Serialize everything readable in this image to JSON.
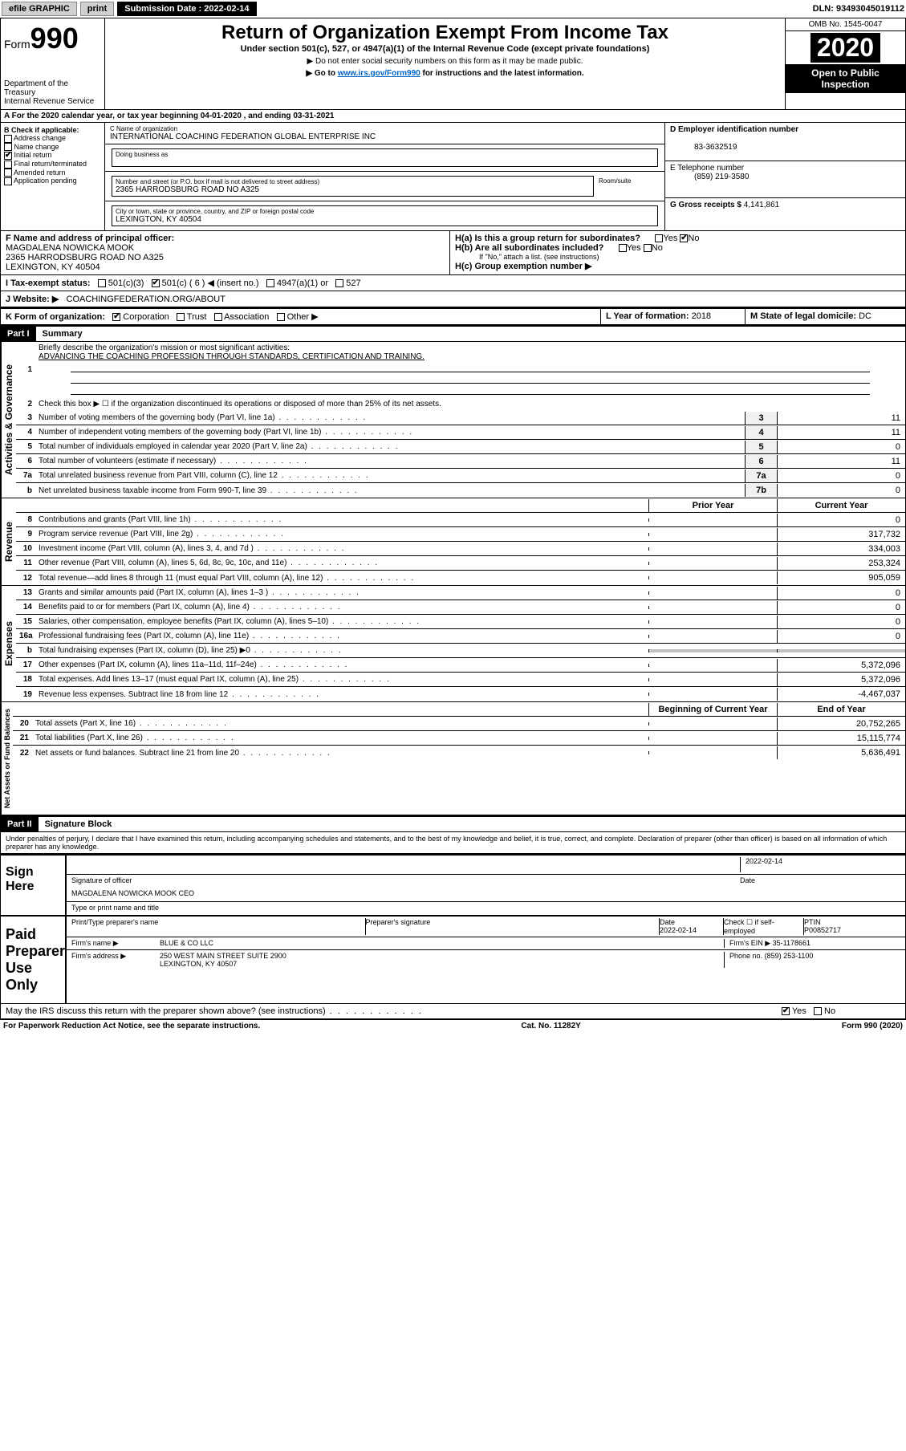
{
  "topbar": {
    "efile": "efile GRAPHIC",
    "print": "print",
    "sub_label": "Submission Date : 2022-02-14",
    "dln": "DLN: 93493045019112"
  },
  "header": {
    "form_label": "Form",
    "form_num": "990",
    "dept": "Department of the Treasury",
    "irs": "Internal Revenue Service",
    "title": "Return of Organization Exempt From Income Tax",
    "subtitle": "Under section 501(c), 527, or 4947(a)(1) of the Internal Revenue Code (except private foundations)",
    "note1": "▶ Do not enter social security numbers on this form as it may be made public.",
    "note2_pre": "▶ Go to ",
    "note2_link": "www.irs.gov/Form990",
    "note2_post": " for instructions and the latest information.",
    "omb": "OMB No. 1545-0047",
    "year": "2020",
    "open": "Open to Public Inspection"
  },
  "row_a": "A For the 2020 calendar year, or tax year beginning 04-01-2020    , and ending 03-31-2021",
  "box_b": {
    "label": "B Check if applicable:",
    "opts": [
      "Address change",
      "Name change",
      "Initial return",
      "Final return/terminated",
      "Amended return",
      "Application pending"
    ],
    "checked_idx": 2
  },
  "box_c": {
    "name_label": "C Name of organization",
    "name": "INTERNATIONAL COACHING FEDERATION GLOBAL ENTERPRISE INC",
    "dba_label": "Doing business as",
    "addr_label": "Number and street (or P.O. box if mail is not delivered to street address)",
    "room_label": "Room/suite",
    "addr": "2365 HARRODSBURG ROAD NO A325",
    "city_label": "City or town, state or province, country, and ZIP or foreign postal code",
    "city": "LEXINGTON, KY  40504"
  },
  "box_d": {
    "label": "D Employer identification number",
    "val": "83-3632519"
  },
  "box_e": {
    "label": "E Telephone number",
    "val": "(859) 219-3580"
  },
  "box_g": {
    "label": "G Gross receipts $",
    "val": "4,141,861"
  },
  "box_f": {
    "label": "F  Name and address of principal officer:",
    "name": "MAGDALENA NOWICKA MOOK",
    "addr": "2365 HARRODSBURG ROAD NO A325",
    "city": "LEXINGTON, KY  40504"
  },
  "box_h": {
    "a": "H(a)  Is this a group return for subordinates?",
    "b": "H(b)  Are all subordinates included?",
    "b_note": "If \"No,\" attach a list. (see instructions)",
    "c": "H(c)  Group exemption number ▶",
    "yes": "Yes",
    "no": "No"
  },
  "box_i": {
    "label": "I  Tax-exempt status:",
    "o1": "501(c)(3)",
    "o2": "501(c) ( 6 ) ◀ (insert no.)",
    "o3": "4947(a)(1) or",
    "o4": "527"
  },
  "box_j": {
    "label": "J  Website: ▶",
    "val": "COACHINGFEDERATION.ORG/ABOUT"
  },
  "box_k": {
    "label": "K Form of organization:",
    "o1": "Corporation",
    "o2": "Trust",
    "o3": "Association",
    "o4": "Other ▶"
  },
  "box_l": {
    "label": "L Year of formation:",
    "val": "2018"
  },
  "box_m": {
    "label": "M State of legal domicile:",
    "val": "DC"
  },
  "part1": {
    "tag": "Part I",
    "title": "Summary"
  },
  "summary": {
    "l1_label": "Briefly describe the organization's mission or most significant activities:",
    "l1_val": "ADVANCING THE COACHING PROFESSION THROUGH STANDARDS, CERTIFICATION AND TRAINING.",
    "l2": "Check this box ▶ ☐  if the organization discontinued its operations or disposed of more than 25% of its net assets.",
    "rows_gov": [
      {
        "n": "3",
        "t": "Number of voting members of the governing body (Part VI, line 1a)",
        "b": "3",
        "v": "11"
      },
      {
        "n": "4",
        "t": "Number of independent voting members of the governing body (Part VI, line 1b)",
        "b": "4",
        "v": "11"
      },
      {
        "n": "5",
        "t": "Total number of individuals employed in calendar year 2020 (Part V, line 2a)",
        "b": "5",
        "v": "0"
      },
      {
        "n": "6",
        "t": "Total number of volunteers (estimate if necessary)",
        "b": "6",
        "v": "11"
      },
      {
        "n": "7a",
        "t": "Total unrelated business revenue from Part VIII, column (C), line 12",
        "b": "7a",
        "v": "0"
      },
      {
        "n": "b",
        "t": "Net unrelated business taxable income from Form 990-T, line 39",
        "b": "7b",
        "v": "0"
      }
    ],
    "col_prior": "Prior Year",
    "col_curr": "Current Year",
    "rows_rev": [
      {
        "n": "8",
        "t": "Contributions and grants (Part VIII, line 1h)",
        "p": "",
        "c": "0"
      },
      {
        "n": "9",
        "t": "Program service revenue (Part VIII, line 2g)",
        "p": "",
        "c": "317,732"
      },
      {
        "n": "10",
        "t": "Investment income (Part VIII, column (A), lines 3, 4, and 7d )",
        "p": "",
        "c": "334,003"
      },
      {
        "n": "11",
        "t": "Other revenue (Part VIII, column (A), lines 5, 6d, 8c, 9c, 10c, and 11e)",
        "p": "",
        "c": "253,324"
      },
      {
        "n": "12",
        "t": "Total revenue—add lines 8 through 11 (must equal Part VIII, column (A), line 12)",
        "p": "",
        "c": "905,059"
      }
    ],
    "rows_exp": [
      {
        "n": "13",
        "t": "Grants and similar amounts paid (Part IX, column (A), lines 1–3 )",
        "p": "",
        "c": "0"
      },
      {
        "n": "14",
        "t": "Benefits paid to or for members (Part IX, column (A), line 4)",
        "p": "",
        "c": "0"
      },
      {
        "n": "15",
        "t": "Salaries, other compensation, employee benefits (Part IX, column (A), lines 5–10)",
        "p": "",
        "c": "0"
      },
      {
        "n": "16a",
        "t": "Professional fundraising fees (Part IX, column (A), line 11e)",
        "p": "",
        "c": "0"
      },
      {
        "n": "b",
        "t": "Total fundraising expenses (Part IX, column (D), line 25) ▶0",
        "p": "gray",
        "c": "gray"
      },
      {
        "n": "17",
        "t": "Other expenses (Part IX, column (A), lines 11a–11d, 11f–24e)",
        "p": "",
        "c": "5,372,096"
      },
      {
        "n": "18",
        "t": "Total expenses. Add lines 13–17 (must equal Part IX, column (A), line 25)",
        "p": "",
        "c": "5,372,096"
      },
      {
        "n": "19",
        "t": "Revenue less expenses. Subtract line 18 from line 12",
        "p": "",
        "c": "-4,467,037"
      }
    ],
    "col_begin": "Beginning of Current Year",
    "col_end": "End of Year",
    "rows_net": [
      {
        "n": "20",
        "t": "Total assets (Part X, line 16)",
        "p": "",
        "c": "20,752,265"
      },
      {
        "n": "21",
        "t": "Total liabilities (Part X, line 26)",
        "p": "",
        "c": "15,115,774"
      },
      {
        "n": "22",
        "t": "Net assets or fund balances. Subtract line 21 from line 20",
        "p": "",
        "c": "5,636,491"
      }
    ],
    "vlabels": {
      "gov": "Activities & Governance",
      "rev": "Revenue",
      "exp": "Expenses",
      "net": "Net Assets or Fund Balances"
    }
  },
  "part2": {
    "tag": "Part II",
    "title": "Signature Block",
    "decl": "Under penalties of perjury, I declare that I have examined this return, including accompanying schedules and statements, and to the best of my knowledge and belief, it is true, correct, and complete. Declaration of preparer (other than officer) is based on all information of which preparer has any knowledge."
  },
  "sign": {
    "here": "Sign Here",
    "sig_label": "Signature of officer",
    "date_label": "Date",
    "date": "2022-02-14",
    "name": "MAGDALENA NOWICKA MOOK  CEO",
    "name_label": "Type or print name and title"
  },
  "paid": {
    "label": "Paid Preparer Use Only",
    "h1": "Print/Type preparer's name",
    "h2": "Preparer's signature",
    "h3": "Date",
    "h4": "Check ☐ if self-employed",
    "h5": "PTIN",
    "date": "2022-02-14",
    "ptin": "P00852717",
    "firm_label": "Firm's name    ▶",
    "firm": "BLUE & CO LLC",
    "ein_label": "Firm's EIN ▶",
    "ein": "35-1178661",
    "addr_label": "Firm's address ▶",
    "addr": "250 WEST MAIN STREET SUITE 2900",
    "city": "LEXINGTON, KY  40507",
    "phone_label": "Phone no.",
    "phone": "(859) 253-1100"
  },
  "discuss": {
    "text": "May the IRS discuss this return with the preparer shown above? (see instructions)",
    "yes": "Yes",
    "no": "No"
  },
  "footer": {
    "l": "For Paperwork Reduction Act Notice, see the separate instructions.",
    "m": "Cat. No. 11282Y",
    "r": "Form 990 (2020)"
  }
}
